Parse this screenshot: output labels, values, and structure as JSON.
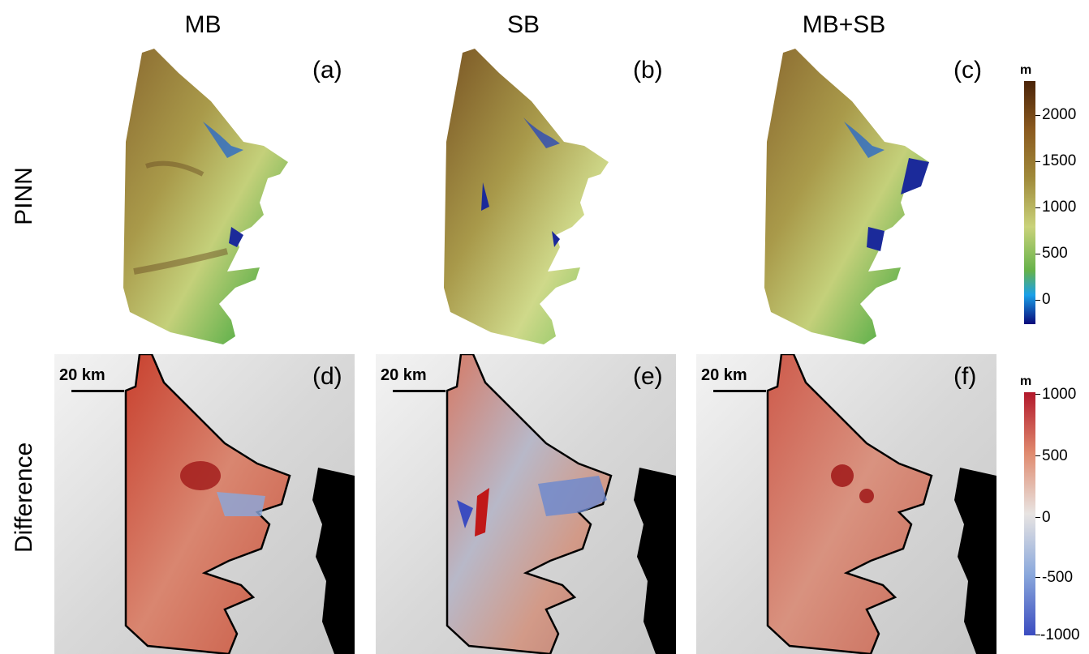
{
  "columns": [
    "MB",
    "SB",
    "MB+SB"
  ],
  "rows": [
    "PINN",
    "Difference"
  ],
  "panel_labels": [
    "(a)",
    "(b)",
    "(c)",
    "(d)",
    "(e)",
    "(f)"
  ],
  "scale_bar": "20 km",
  "colorbar_top": {
    "unit": "m",
    "ticks": [
      "2000",
      "1500",
      "1000",
      "500",
      "0"
    ],
    "colors": [
      "#4a2308",
      "#8b5a1f",
      "#a08a3a",
      "#c9d27a",
      "#66b24a",
      "#1aa0e8",
      "#0a0a7a"
    ]
  },
  "colorbar_bottom": {
    "unit": "m",
    "ticks": [
      "1000",
      "500",
      "0",
      "-500",
      "-1000"
    ],
    "colors": [
      "#b2182b",
      "#e08a6e",
      "#e8e4e2",
      "#8aa8dc",
      "#3b4cc0"
    ]
  }
}
